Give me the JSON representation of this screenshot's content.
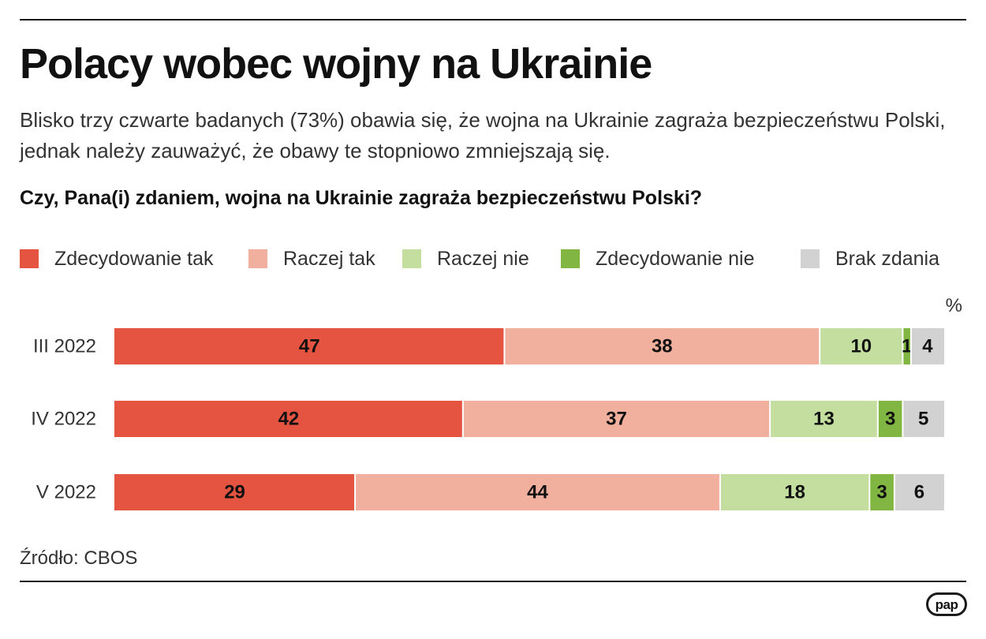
{
  "title": "Polacy wobec wojny na Ukrainie",
  "subtitle": "Blisko trzy czwarte badanych (73%) obawia się, że wojna na Ukrainie zagraża bezpieczeństwu Polski, jednak należy zauważyć, że obawy te stopniowo zmniejszają się.",
  "source": "Źródło: CBOS",
  "logo_text": "pap",
  "chart_data": {
    "type": "bar",
    "orientation": "horizontal",
    "stacked": true,
    "title": "Czy, Pana(i) zdaniem, wojna na Ukrainie zagraża bezpieczeństwu Polski?",
    "unit": "%",
    "categories": [
      "III 2022",
      "IV 2022",
      "V 2022"
    ],
    "xlim": [
      0,
      100
    ],
    "legend_position": "top",
    "series": [
      {
        "name": "Zdecydowanie tak",
        "color": "#e55441",
        "label_color": "#111111",
        "values": [
          47,
          42,
          29
        ]
      },
      {
        "name": "Raczej tak",
        "color": "#f1b09d",
        "label_color": "#111111",
        "values": [
          38,
          37,
          44
        ]
      },
      {
        "name": "Raczej nie",
        "color": "#c4dea0",
        "label_color": "#111111",
        "values": [
          10,
          13,
          18
        ]
      },
      {
        "name": "Zdecydowanie nie",
        "color": "#80b641",
        "label_color": "#111111",
        "values": [
          1,
          3,
          3
        ]
      },
      {
        "name": "Brak zdania",
        "color": "#d2d2d2",
        "label_color": "#111111",
        "values": [
          4,
          5,
          6
        ]
      }
    ]
  }
}
